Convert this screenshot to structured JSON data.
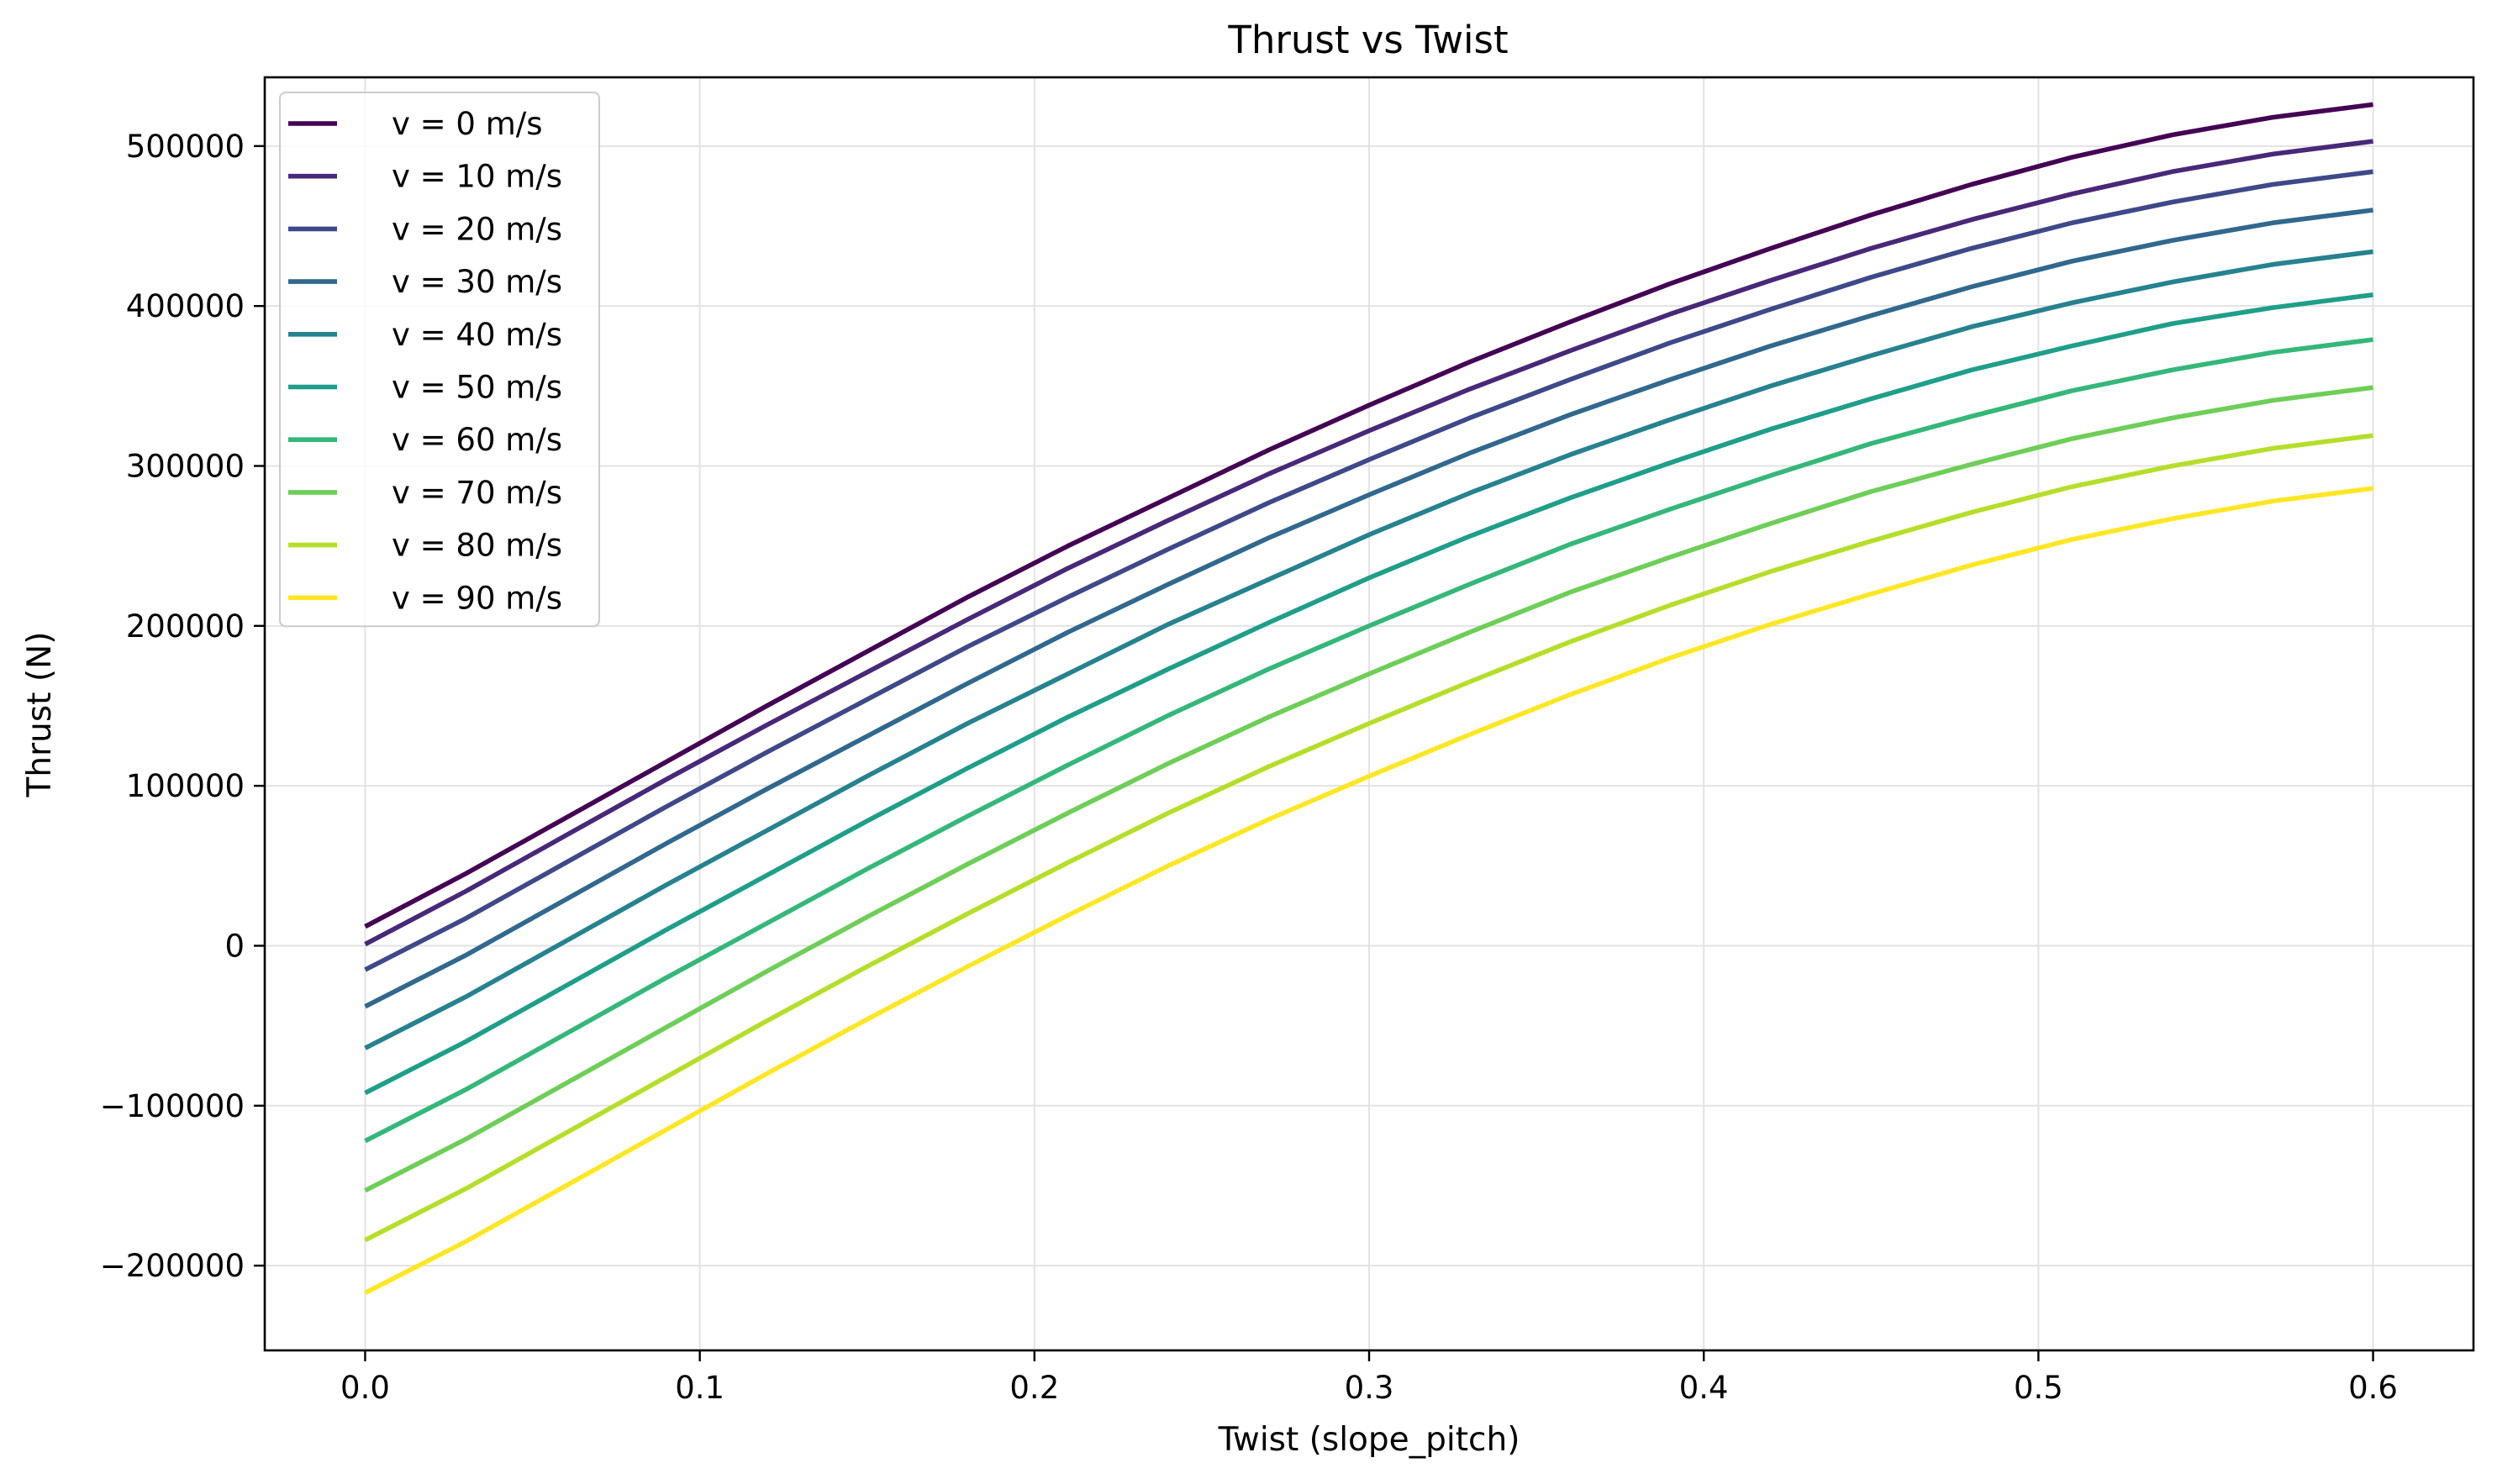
{
  "chart_data": {
    "type": "line",
    "title": "Thrust vs Twist",
    "xlabel": "Twist (slope_pitch)",
    "ylabel": "Thrust (N)",
    "xlim": [
      -0.03,
      0.63
    ],
    "ylim": [
      -253000,
      543000
    ],
    "xticks": [
      0.0,
      0.1,
      0.2,
      0.3,
      0.4,
      0.5,
      0.6
    ],
    "xtick_labels": [
      "0.0",
      "0.1",
      "0.2",
      "0.3",
      "0.4",
      "0.5",
      "0.6"
    ],
    "yticks": [
      -200000,
      -100000,
      0,
      100000,
      200000,
      300000,
      400000,
      500000
    ],
    "ytick_labels": [
      "−200000",
      "−100000",
      "0",
      "100000",
      "200000",
      "300000",
      "400000",
      "500000"
    ],
    "grid": true,
    "legend_position": "top-left",
    "x": [
      0.0,
      0.03,
      0.06,
      0.09,
      0.12,
      0.15,
      0.18,
      0.21,
      0.24,
      0.27,
      0.3,
      0.33,
      0.36,
      0.39,
      0.42,
      0.45,
      0.48,
      0.51,
      0.54,
      0.57,
      0.6
    ],
    "series": [
      {
        "name": "v = 0 m/s",
        "color": "#440154",
        "values": [
          12000,
          45000,
          80000,
          115000,
          150000,
          184000,
          218000,
          250000,
          280000,
          310000,
          338000,
          365000,
          390000,
          414000,
          436000,
          457000,
          476000,
          493000,
          507000,
          518000,
          526000
        ]
      },
      {
        "name": "v = 10 m/s",
        "color": "#482878",
        "values": [
          1000,
          34000,
          69000,
          104000,
          138000,
          171000,
          204000,
          236000,
          266000,
          295000,
          322000,
          348000,
          372000,
          395000,
          416000,
          436000,
          454000,
          470000,
          484000,
          495000,
          503000
        ]
      },
      {
        "name": "v = 20 m/s",
        "color": "#3e4989",
        "values": [
          -15000,
          17000,
          52000,
          87000,
          121000,
          154000,
          187000,
          218000,
          248000,
          277000,
          304000,
          330000,
          354000,
          377000,
          398000,
          418000,
          436000,
          452000,
          465000,
          476000,
          484000
        ]
      },
      {
        "name": "v = 30 m/s",
        "color": "#31688e",
        "values": [
          -38000,
          -6000,
          29000,
          64000,
          98000,
          131000,
          164000,
          196000,
          226000,
          255000,
          282000,
          308000,
          332000,
          354000,
          375000,
          394000,
          412000,
          428000,
          441000,
          452000,
          460000
        ]
      },
      {
        "name": "v = 40 m/s",
        "color": "#26828e",
        "values": [
          -64000,
          -32000,
          3000,
          38000,
          72000,
          106000,
          139000,
          170000,
          201000,
          229000,
          257000,
          283000,
          307000,
          329000,
          350000,
          369000,
          387000,
          402000,
          415000,
          426000,
          434000
        ]
      },
      {
        "name": "v = 50 m/s",
        "color": "#1f9e89",
        "values": [
          -92000,
          -60000,
          -25000,
          10000,
          44000,
          78000,
          111000,
          143000,
          173000,
          202000,
          230000,
          256000,
          280000,
          302000,
          323000,
          342000,
          360000,
          375000,
          389000,
          399000,
          407000
        ]
      },
      {
        "name": "v = 60 m/s",
        "color": "#35b779",
        "values": [
          -122000,
          -90000,
          -55000,
          -20000,
          14000,
          48000,
          81000,
          113000,
          144000,
          173000,
          200000,
          226000,
          251000,
          273000,
          294000,
          314000,
          331000,
          347000,
          360000,
          371000,
          379000
        ]
      },
      {
        "name": "v = 70 m/s",
        "color": "#6ece58",
        "values": [
          -153000,
          -121000,
          -86000,
          -51000,
          -16000,
          18000,
          51000,
          83000,
          114000,
          143000,
          170000,
          196000,
          221000,
          243000,
          264000,
          284000,
          301000,
          317000,
          330000,
          341000,
          349000
        ]
      },
      {
        "name": "v = 80 m/s",
        "color": "#b5de2b",
        "values": [
          -184000,
          -152000,
          -117000,
          -82000,
          -47000,
          -13000,
          20000,
          52000,
          83000,
          112000,
          139000,
          165000,
          190000,
          213000,
          234000,
          253000,
          271000,
          287000,
          300000,
          311000,
          319000
        ]
      },
      {
        "name": "v = 90 m/s",
        "color": "#fde725",
        "values": [
          -217000,
          -185000,
          -150000,
          -115000,
          -80000,
          -46000,
          -13000,
          19000,
          50000,
          79000,
          106000,
          132000,
          157000,
          180000,
          201000,
          220000,
          238000,
          254000,
          267000,
          278000,
          286000
        ]
      }
    ]
  }
}
